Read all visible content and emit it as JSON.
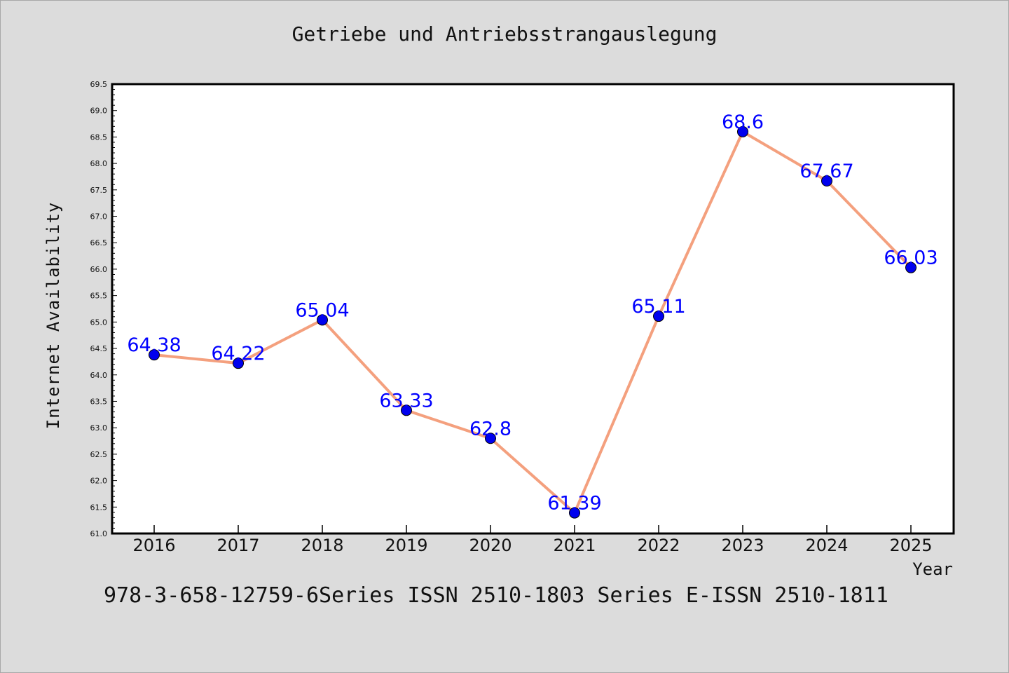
{
  "chart_data": {
    "type": "line",
    "title": "Getriebe und Antriebsstrangauslegung",
    "xlabel": "Year",
    "ylabel": "Internet Availability",
    "categories": [
      "2016",
      "2017",
      "2018",
      "2019",
      "2020",
      "2021",
      "2022",
      "2023",
      "2024",
      "2025"
    ],
    "series": [
      {
        "values": [
          64.38,
          64.22,
          65.04,
          63.33,
          62.8,
          61.39,
          65.11,
          68.6,
          67.67,
          66.03
        ],
        "data_labels": [
          "64.38",
          "64.22",
          "65.04",
          "63.33",
          "62.8",
          "61.39",
          "65.11",
          "68.6",
          "67.67",
          "66.03"
        ],
        "line_color": "#f4a07e",
        "marker_color": "#0000ee"
      }
    ],
    "ylim": [
      61.0,
      69.5
    ],
    "yticks": [
      "61.0",
      "61.5",
      "62.0",
      "62.5",
      "63.0",
      "63.5",
      "64.0",
      "64.5",
      "65.0",
      "65.5",
      "66.0",
      "66.5",
      "67.0",
      "67.5",
      "68.0",
      "68.5",
      "69.0",
      "69.5"
    ],
    "grid": false,
    "legend": "none"
  },
  "footer_text": "978-3-658-12759-6Series ISSN 2510-1803 Series E-ISSN 2510-1811"
}
